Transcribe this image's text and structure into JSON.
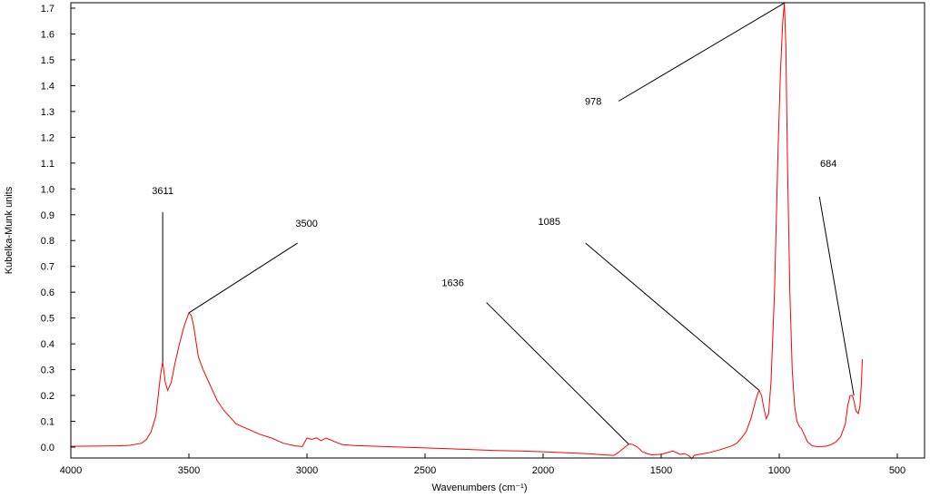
{
  "chart_data": {
    "type": "line",
    "title": "",
    "xlabel": "Wavenumbers (cm⁻¹)",
    "ylabel": "Kubelka-Munk units",
    "xlim": [
      4000,
      400
    ],
    "ylim": [
      -0.05,
      1.72
    ],
    "x_reversed": true,
    "grid": false,
    "legend": "none",
    "x_ticks": [
      4000,
      3500,
      3000,
      2500,
      2000,
      1500,
      1000,
      500
    ],
    "x_tick_labels": [
      "4000",
      "3500",
      "3000",
      "2500",
      "2000",
      "1500",
      "1000",
      "500"
    ],
    "y_ticks": [
      0.0,
      0.1,
      0.2,
      0.3,
      0.4,
      0.5,
      0.6,
      0.7,
      0.8,
      0.9,
      1.0,
      1.1,
      1.2,
      1.3,
      1.4,
      1.5,
      1.6,
      1.7
    ],
    "y_tick_labels": [
      "0.0",
      "0.1",
      "0.2",
      "0.3",
      "0.4",
      "0.5",
      "0.6",
      "0.7",
      "0.8",
      "0.9",
      "1.0",
      "1.1",
      "1.2",
      "1.3",
      "1.4",
      "1.5",
      "1.6",
      "1.7"
    ],
    "series": [
      {
        "color": "#ff0000",
        "x": [
          4000,
          3900,
          3800,
          3750,
          3700,
          3680,
          3660,
          3640,
          3630,
          3620,
          3611,
          3600,
          3590,
          3575,
          3560,
          3540,
          3520,
          3500,
          3490,
          3480,
          3470,
          3460,
          3440,
          3420,
          3400,
          3380,
          3350,
          3300,
          3250,
          3200,
          3150,
          3100,
          3050,
          3020,
          3000,
          2980,
          2960,
          2940,
          2920,
          2900,
          2880,
          2850,
          2800,
          2700,
          2600,
          2500,
          2400,
          2300,
          2200,
          2100,
          2000,
          1900,
          1800,
          1750,
          1700,
          1680,
          1660,
          1640,
          1630,
          1620,
          1600,
          1580,
          1560,
          1540,
          1500,
          1450,
          1420,
          1400,
          1380,
          1370,
          1360,
          1350,
          1300,
          1250,
          1200,
          1180,
          1160,
          1140,
          1120,
          1100,
          1090,
          1085,
          1075,
          1065,
          1055,
          1045,
          1035,
          1020,
          1005,
          995,
          985,
          978,
          972,
          965,
          955,
          945,
          935,
          925,
          915,
          905,
          895,
          880,
          860,
          840,
          820,
          800,
          780,
          760,
          740,
          720,
          710,
          700,
          690,
          684,
          675,
          665,
          658,
          652,
          648
        ],
        "y": [
          0.003,
          0.004,
          0.005,
          0.007,
          0.015,
          0.03,
          0.06,
          0.12,
          0.2,
          0.28,
          0.33,
          0.25,
          0.22,
          0.25,
          0.32,
          0.4,
          0.47,
          0.52,
          0.51,
          0.47,
          0.41,
          0.35,
          0.3,
          0.26,
          0.22,
          0.18,
          0.14,
          0.09,
          0.07,
          0.05,
          0.035,
          0.015,
          0.005,
          0.002,
          0.035,
          0.03,
          0.036,
          0.025,
          0.035,
          0.028,
          0.02,
          0.01,
          0.006,
          0.003,
          0.0,
          -0.003,
          -0.006,
          -0.01,
          -0.013,
          -0.015,
          -0.018,
          -0.022,
          -0.026,
          -0.03,
          -0.032,
          -0.02,
          -0.005,
          0.01,
          0.012,
          0.01,
          0.0,
          -0.018,
          -0.025,
          -0.03,
          -0.028,
          -0.015,
          -0.028,
          -0.025,
          -0.035,
          -0.045,
          -0.032,
          -0.03,
          -0.022,
          -0.01,
          0.005,
          0.015,
          0.035,
          0.06,
          0.11,
          0.18,
          0.21,
          0.22,
          0.2,
          0.15,
          0.11,
          0.13,
          0.25,
          0.6,
          1.15,
          1.45,
          1.65,
          1.72,
          1.55,
          1.1,
          0.6,
          0.3,
          0.16,
          0.1,
          0.08,
          0.07,
          0.05,
          0.02,
          0.005,
          0.002,
          0.002,
          0.004,
          0.01,
          0.02,
          0.04,
          0.09,
          0.16,
          0.2,
          0.2,
          0.18,
          0.14,
          0.13,
          0.16,
          0.25,
          0.34
        ]
      }
    ],
    "annotations": [
      {
        "text": "3611",
        "x": 3611,
        "y": 0.33,
        "label_x": 3611,
        "label_y": 0.91
      },
      {
        "text": "3500",
        "x": 3500,
        "y": 0.52,
        "label_x": 3040,
        "label_y": 0.79
      },
      {
        "text": "1636",
        "x": 1636,
        "y": 0.01,
        "label_x": 2240,
        "label_y": 0.56
      },
      {
        "text": "1085",
        "x": 1085,
        "y": 0.22,
        "label_x": 1820,
        "label_y": 0.79
      },
      {
        "text": "978",
        "x": 978,
        "y": 1.72,
        "label_x": 1680,
        "label_y": 1.34
      },
      {
        "text": "684",
        "x": 684,
        "y": 0.2,
        "label_x": 830,
        "label_y": 0.97
      }
    ]
  }
}
